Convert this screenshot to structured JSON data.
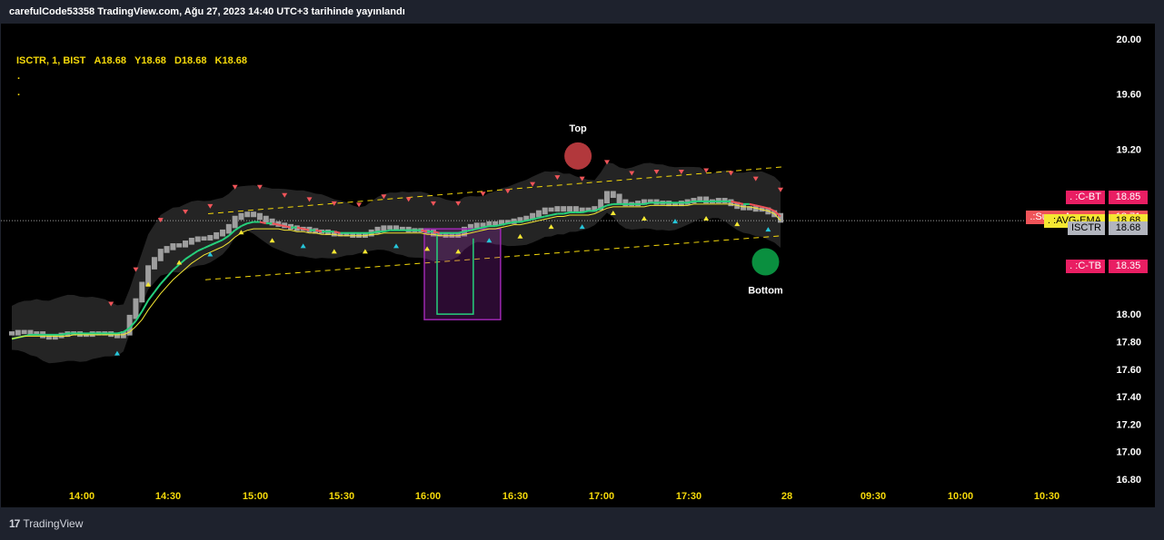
{
  "header": {
    "title": "carefulCode53358 TradingView.com, Ağu 27, 2023 14:40 UTC+3 tarihinde yayınlandı"
  },
  "legend": {
    "symbol": "ISCTR, 1, BIST",
    "open_label": "A",
    "open_value": "18.68",
    "high_label": "Y",
    "high_value": "18.68",
    "low_label": "D",
    "low_value": "18.68",
    "close_label": "K",
    "close_value": "18.68",
    "dots": [
      ".",
      "."
    ]
  },
  "price_tags": [
    {
      "label": ". :C-BT",
      "value": "18.85",
      "color": "#e91e63"
    },
    {
      "label": ".:Super Avarage",
      "value": "18.71",
      "color": "#f05459"
    },
    {
      "label": ". :AVG-EMA",
      "value": "18.68",
      "color": "#f5e732"
    },
    {
      "label": "ISCTR",
      "value": "18.68",
      "color": "#b2b5be"
    },
    {
      "label": ". :C-TB",
      "value": "18.35",
      "color": "#e91e63"
    }
  ],
  "annotations": {
    "top_label": "Top",
    "bottom_label": "Bottom"
  },
  "footer": {
    "brand": "TradingView",
    "logo": "17"
  },
  "colors": {
    "background": "#000000",
    "frame": "#1e222d",
    "axis_text": "#f5d90a",
    "price_axis_text": "#ffffff",
    "candle": "#9e9e9e",
    "super_avg_up": "#26d07c",
    "super_avg_down": "#f05459",
    "avg_ema": "#f5e732",
    "channel": "#f5d90a",
    "band_fill": "#2a2a2a",
    "box": "#9c27b0",
    "top_marker": "#b2383c",
    "bottom_marker": "#0a8f3f",
    "sell_marker": "#f05459",
    "buy_marker": "#f5e732",
    "buy_marker_alt": "#26c6da"
  },
  "chart_data": {
    "type": "candlestick",
    "symbol": "ISCTR",
    "interval": "1",
    "exchange": "BIST",
    "y_ticks": [
      "20.00",
      "19.60",
      "19.20",
      "18.00",
      "17.80",
      "17.60",
      "17.40",
      "17.20",
      "17.00",
      "16.80"
    ],
    "x_ticks": [
      "14:00",
      "14:30",
      "15:00",
      "15:30",
      "16:00",
      "16:30",
      "17:00",
      "17:30",
      "28",
      "09:30",
      "10:00",
      "10:30"
    ],
    "ylim": [
      16.7,
      20.05
    ],
    "last_price": 18.68,
    "close": [
      17.86,
      17.87,
      17.87,
      17.86,
      17.86,
      17.84,
      17.83,
      17.84,
      17.85,
      17.86,
      17.86,
      17.85,
      17.85,
      17.86,
      17.86,
      17.86,
      17.85,
      17.84,
      17.86,
      17.98,
      18.1,
      18.22,
      18.34,
      18.4,
      18.46,
      18.48,
      18.5,
      18.5,
      18.52,
      18.54,
      18.55,
      18.55,
      18.56,
      18.58,
      18.6,
      18.64,
      18.7,
      18.72,
      18.73,
      18.72,
      18.7,
      18.68,
      18.66,
      18.65,
      18.64,
      18.63,
      18.62,
      18.62,
      18.61,
      18.6,
      18.6,
      18.59,
      18.58,
      18.58,
      18.58,
      18.57,
      18.57,
      18.58,
      18.6,
      18.62,
      18.63,
      18.63,
      18.62,
      18.62,
      18.61,
      18.61,
      18.61,
      18.6,
      18.58,
      18.58,
      18.57,
      18.57,
      18.58,
      18.62,
      18.64,
      18.65,
      18.65,
      18.66,
      18.66,
      18.67,
      18.67,
      18.68,
      18.69,
      18.7,
      18.72,
      18.74,
      18.76,
      18.76,
      18.77,
      18.76,
      18.77,
      18.76,
      18.76,
      18.76,
      18.77,
      18.82,
      18.88,
      18.86,
      18.82,
      18.8,
      18.8,
      18.81,
      18.82,
      18.82,
      18.81,
      18.81,
      18.8,
      18.8,
      18.81,
      18.82,
      18.83,
      18.84,
      18.82,
      18.82,
      18.83,
      18.82,
      18.8,
      18.78,
      18.77,
      18.77,
      18.76,
      18.76,
      18.74,
      18.72,
      18.68
    ],
    "series": [
      {
        "name": ".:Super Avarage",
        "values": [
          17.82,
          17.83,
          17.84,
          17.85,
          17.85,
          17.85,
          17.85,
          17.85,
          17.85,
          17.86,
          17.86,
          17.86,
          17.86,
          17.86,
          17.86,
          17.86,
          17.86,
          17.86,
          17.87,
          17.9,
          17.95,
          18.02,
          18.1,
          18.16,
          18.22,
          18.27,
          18.32,
          18.36,
          18.4,
          18.43,
          18.46,
          18.48,
          18.5,
          18.52,
          18.54,
          18.57,
          18.61,
          18.64,
          18.66,
          18.67,
          18.67,
          18.66,
          18.66,
          18.65,
          18.64,
          18.63,
          18.63,
          18.62,
          18.61,
          18.61,
          18.6,
          18.6,
          18.6,
          18.59,
          18.59,
          18.59,
          18.59,
          18.59,
          18.59,
          18.6,
          18.6,
          18.61,
          18.61,
          18.61,
          18.61,
          18.61,
          18.61,
          18.6,
          18.6,
          18.59,
          18.59,
          18.59,
          18.59,
          18.6,
          18.61,
          18.62,
          18.63,
          18.64,
          18.64,
          18.65,
          18.66,
          18.67,
          18.67,
          18.68,
          18.69,
          18.7,
          18.71,
          18.72,
          18.73,
          18.73,
          18.74,
          18.74,
          18.74,
          18.75,
          18.75,
          18.77,
          18.79,
          18.8,
          18.8,
          18.8,
          18.8,
          18.8,
          18.8,
          18.81,
          18.81,
          18.81,
          18.81,
          18.81,
          18.81,
          18.81,
          18.82,
          18.82,
          18.82,
          18.82,
          18.82,
          18.82,
          18.82,
          18.81,
          18.8,
          18.8,
          18.79,
          18.78,
          18.77,
          18.75,
          18.71
        ]
      },
      {
        "name": ". :AVG-EMA",
        "values": [
          17.82,
          17.83,
          17.84,
          17.84,
          17.84,
          17.84,
          17.84,
          17.84,
          17.84,
          17.84,
          17.85,
          17.85,
          17.85,
          17.85,
          17.85,
          17.85,
          17.85,
          17.85,
          17.85,
          17.87,
          17.91,
          17.96,
          18.03,
          18.09,
          18.15,
          18.2,
          18.25,
          18.29,
          18.33,
          18.37,
          18.4,
          18.43,
          18.45,
          18.47,
          18.49,
          18.52,
          18.56,
          18.59,
          18.61,
          18.62,
          18.62,
          18.62,
          18.62,
          18.62,
          18.61,
          18.61,
          18.6,
          18.6,
          18.59,
          18.59,
          18.58,
          18.58,
          18.58,
          18.57,
          18.57,
          18.57,
          18.57,
          18.57,
          18.58,
          18.58,
          18.59,
          18.59,
          18.59,
          18.59,
          18.59,
          18.59,
          18.59,
          18.58,
          18.58,
          18.57,
          18.57,
          18.57,
          18.57,
          18.58,
          18.59,
          18.6,
          18.61,
          18.62,
          18.62,
          18.63,
          18.64,
          18.65,
          18.65,
          18.66,
          18.67,
          18.68,
          18.69,
          18.7,
          18.71,
          18.71,
          18.72,
          18.72,
          18.72,
          18.72,
          18.73,
          18.75,
          18.77,
          18.78,
          18.78,
          18.78,
          18.78,
          18.78,
          18.78,
          18.79,
          18.79,
          18.79,
          18.79,
          18.79,
          18.79,
          18.79,
          18.8,
          18.8,
          18.8,
          18.8,
          18.8,
          18.8,
          18.8,
          18.79,
          18.78,
          18.78,
          18.77,
          18.76,
          18.75,
          18.73,
          18.68
        ]
      },
      {
        "name": ". :C-BT",
        "values": [
          18.85
        ]
      },
      {
        "name": ". :C-TB",
        "values": [
          18.35
        ]
      }
    ],
    "box": {
      "x_start": "16:00",
      "x_end": "16:22",
      "y_low": 17.96,
      "y_high": 18.62
    },
    "box_spike": {
      "low": 18.0,
      "high": 18.55
    },
    "markers": [
      {
        "label": "Top",
        "x": "16:52",
        "y": 19.15
      },
      {
        "label": "Bottom",
        "x": "17:57",
        "y": 18.38
      }
    ],
    "channel": {
      "upper": [
        18.73,
        19.07
      ],
      "lower": [
        18.25,
        18.57
      ]
    },
    "legend_position": "top-left",
    "grid": false
  }
}
